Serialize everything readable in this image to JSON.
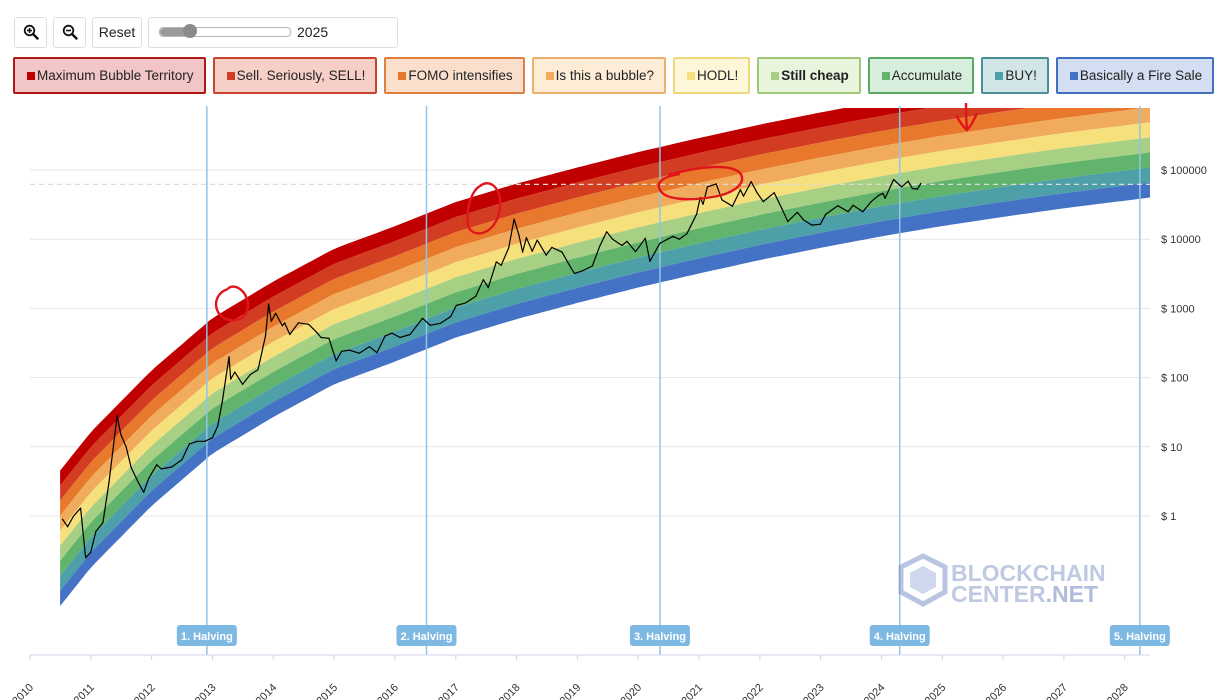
{
  "toolbar": {
    "zoom_in_icon": "zoom-in-icon",
    "zoom_out_icon": "zoom-out-icon",
    "reset_label": "Reset",
    "year_slider": {
      "min": 2010,
      "max": 2028,
      "value": 2025,
      "label": "2025"
    }
  },
  "legend": [
    {
      "label": "Maximum Bubble Territory",
      "color": "#c00000",
      "bg": "#f2c6c6",
      "border": "#b01818",
      "bold": false
    },
    {
      "label": "Sell. Seriously, SELL!",
      "color": "#d23d22",
      "bg": "#f6d0c6",
      "border": "#c8442e",
      "bold": false
    },
    {
      "label": "FOMO intensifies",
      "color": "#e8782c",
      "bg": "#fae0cc",
      "border": "#e0803c",
      "bold": false
    },
    {
      "label": "Is this a bubble?",
      "color": "#f0ac5c",
      "bg": "#fdecd6",
      "border": "#eeb06a",
      "bold": false
    },
    {
      "label": "HODL!",
      "color": "#f6e07c",
      "bg": "#fdf6d8",
      "border": "#ecd87a",
      "bold": false
    },
    {
      "label": "Still cheap",
      "color": "#a8d084",
      "bg": "#e8f4dc",
      "border": "#9cc878",
      "bold": true
    },
    {
      "label": "Accumulate",
      "color": "#62b46c",
      "bg": "#d8eedc",
      "border": "#5aa866",
      "bold": false
    },
    {
      "label": "BUY!",
      "color": "#4ea0a8",
      "bg": "#d2e6e8",
      "border": "#4a8e98",
      "bold": false
    },
    {
      "label": "Basically a Fire Sale",
      "color": "#4472c4",
      "bg": "#d4def2",
      "border": "#4270c0",
      "bold": false
    }
  ],
  "watermark": {
    "line1": "BLOCKCHAIN",
    "line2": "CENTER",
    "line2_suffix": ".NET"
  },
  "chart_data": {
    "type": "line",
    "title": "",
    "x_axis": {
      "type": "date",
      "ticks": [
        "2010",
        "2011",
        "2012",
        "2013",
        "2014",
        "2015",
        "2016",
        "2017",
        "2018",
        "2019",
        "2020",
        "2021",
        "2022",
        "2023",
        "2024",
        "2025",
        "2026",
        "2027",
        "2028"
      ],
      "range": [
        "2010-01-01",
        "2028-06-01"
      ]
    },
    "y_axis": {
      "scale": "log",
      "tick_labels": [
        "$ 1",
        "$ 10",
        "$ 100",
        "$ 1000",
        "$ 10000",
        "$ 100000"
      ],
      "range": [
        0.035,
        800000
      ]
    },
    "halvings": [
      {
        "label": "1. Halving",
        "date": "2012-11-28"
      },
      {
        "label": "2. Halving",
        "date": "2016-07-09"
      },
      {
        "label": "3. Halving",
        "date": "2020-05-11"
      },
      {
        "label": "4. Halving",
        "date": "2024-04-20"
      },
      {
        "label": "5. Halving",
        "date": "2028-04-01"
      }
    ],
    "reference_line": {
      "value": 62000,
      "style": "dashed"
    },
    "rainbow_bands": {
      "lower_edge": [
        [
          "2010-07-01",
          0.05
        ],
        [
          "2011-01-01",
          0.18
        ],
        [
          "2012-01-01",
          1.4
        ],
        [
          "2013-01-01",
          8
        ],
        [
          "2014-01-01",
          27
        ],
        [
          "2015-01-01",
          80
        ],
        [
          "2016-01-01",
          170
        ],
        [
          "2017-01-01",
          380
        ],
        [
          "2018-01-01",
          700
        ],
        [
          "2019-01-01",
          1200
        ],
        [
          "2020-01-01",
          2000
        ],
        [
          "2021-01-01",
          3200
        ],
        [
          "2022-01-01",
          5000
        ],
        [
          "2023-01-01",
          7500
        ],
        [
          "2024-01-01",
          11000
        ],
        [
          "2025-01-01",
          15500
        ],
        [
          "2026-01-01",
          21000
        ],
        [
          "2027-01-01",
          28000
        ],
        [
          "2028-01-01",
          36000
        ],
        [
          "2028-06-01",
          40000
        ]
      ],
      "band_ratio": 1.65,
      "band_count": 9
    },
    "series": [
      {
        "type": "price",
        "color": "#000000",
        "points": [
          [
            "2010-07-15",
            0.9
          ],
          [
            "2010-08-15",
            0.7
          ],
          [
            "2010-09-20",
            1.0
          ],
          [
            "2010-11-01",
            1.3
          ],
          [
            "2010-12-01",
            0.25
          ],
          [
            "2011-01-01",
            0.3
          ],
          [
            "2011-02-01",
            0.6
          ],
          [
            "2011-03-15",
            0.8
          ],
          [
            "2011-04-20",
            3
          ],
          [
            "2011-06-08",
            28
          ],
          [
            "2011-07-01",
            15
          ],
          [
            "2011-08-01",
            10
          ],
          [
            "2011-09-01",
            5
          ],
          [
            "2011-10-15",
            3
          ],
          [
            "2011-11-15",
            2.2
          ],
          [
            "2011-12-15",
            3.5
          ],
          [
            "2012-02-01",
            5.5
          ],
          [
            "2012-03-01",
            4.8
          ],
          [
            "2012-05-01",
            5.1
          ],
          [
            "2012-07-01",
            6.5
          ],
          [
            "2012-08-15",
            11
          ],
          [
            "2012-10-01",
            12
          ],
          [
            "2012-11-15",
            12
          ],
          [
            "2013-01-01",
            13.5
          ],
          [
            "2013-02-01",
            20
          ],
          [
            "2013-03-01",
            45
          ],
          [
            "2013-04-10",
            200
          ],
          [
            "2013-04-20",
            95
          ],
          [
            "2013-05-15",
            120
          ],
          [
            "2013-07-01",
            80
          ],
          [
            "2013-08-15",
            110
          ],
          [
            "2013-10-01",
            130
          ],
          [
            "2013-11-15",
            400
          ],
          [
            "2013-12-04",
            1150
          ],
          [
            "2013-12-20",
            650
          ],
          [
            "2014-01-15",
            850
          ],
          [
            "2014-02-25",
            560
          ],
          [
            "2014-03-10",
            620
          ],
          [
            "2014-04-10",
            420
          ],
          [
            "2014-06-01",
            620
          ],
          [
            "2014-08-01",
            590
          ],
          [
            "2014-09-15",
            460
          ],
          [
            "2014-10-15",
            380
          ],
          [
            "2014-12-01",
            370
          ],
          [
            "2015-01-14",
            175
          ],
          [
            "2015-02-15",
            240
          ],
          [
            "2015-04-01",
            250
          ],
          [
            "2015-06-01",
            225
          ],
          [
            "2015-08-01",
            280
          ],
          [
            "2015-09-15",
            230
          ],
          [
            "2015-11-04",
            400
          ],
          [
            "2015-12-15",
            440
          ],
          [
            "2016-02-01",
            380
          ],
          [
            "2016-04-01",
            420
          ],
          [
            "2016-06-16",
            720
          ],
          [
            "2016-08-01",
            570
          ],
          [
            "2016-10-01",
            610
          ],
          [
            "2016-12-01",
            760
          ],
          [
            "2017-01-04",
            1100
          ],
          [
            "2017-03-01",
            1200
          ],
          [
            "2017-05-01",
            1500
          ],
          [
            "2017-06-15",
            2600
          ],
          [
            "2017-07-15",
            2000
          ],
          [
            "2017-09-01",
            4700
          ],
          [
            "2017-10-01",
            4200
          ],
          [
            "2017-11-15",
            7500
          ],
          [
            "2017-12-17",
            19500
          ],
          [
            "2018-01-15",
            11500
          ],
          [
            "2018-02-06",
            6500
          ],
          [
            "2018-03-01",
            10500
          ],
          [
            "2018-04-05",
            6700
          ],
          [
            "2018-05-05",
            9700
          ],
          [
            "2018-06-28",
            5900
          ],
          [
            "2018-08-01",
            7600
          ],
          [
            "2018-10-01",
            6500
          ],
          [
            "2018-11-25",
            3800
          ],
          [
            "2018-12-15",
            3200
          ],
          [
            "2019-02-01",
            3500
          ],
          [
            "2019-04-01",
            4100
          ],
          [
            "2019-05-15",
            7900
          ],
          [
            "2019-06-26",
            12800
          ],
          [
            "2019-08-01",
            10000
          ],
          [
            "2019-09-26",
            8100
          ],
          [
            "2019-10-26",
            9300
          ],
          [
            "2019-12-17",
            6600
          ],
          [
            "2020-02-13",
            10300
          ],
          [
            "2020-03-12",
            4800
          ],
          [
            "2020-05-10",
            8700
          ],
          [
            "2020-07-28",
            11000
          ],
          [
            "2020-09-05",
            10000
          ],
          [
            "2020-10-20",
            12000
          ],
          [
            "2020-12-17",
            23000
          ],
          [
            "2021-01-08",
            40000
          ],
          [
            "2021-01-25",
            32000
          ],
          [
            "2021-02-20",
            57000
          ],
          [
            "2021-04-14",
            63000
          ],
          [
            "2021-05-19",
            37000
          ],
          [
            "2021-07-20",
            30000
          ],
          [
            "2021-09-06",
            52000
          ],
          [
            "2021-09-25",
            42000
          ],
          [
            "2021-11-10",
            68000
          ],
          [
            "2021-12-15",
            47000
          ],
          [
            "2022-01-22",
            35000
          ],
          [
            "2022-03-28",
            47000
          ],
          [
            "2022-05-12",
            28000
          ],
          [
            "2022-06-18",
            18000
          ],
          [
            "2022-08-14",
            24500
          ],
          [
            "2022-09-20",
            19000
          ],
          [
            "2022-11-09",
            16000
          ],
          [
            "2022-12-30",
            16500
          ],
          [
            "2023-02-01",
            23000
          ],
          [
            "2023-04-14",
            30500
          ],
          [
            "2023-06-15",
            25000
          ],
          [
            "2023-07-15",
            31000
          ],
          [
            "2023-09-11",
            25000
          ],
          [
            "2023-11-01",
            35000
          ],
          [
            "2023-12-15",
            43000
          ],
          [
            "2024-01-10",
            46000
          ],
          [
            "2024-01-23",
            39000
          ],
          [
            "2024-03-14",
            73000
          ],
          [
            "2024-05-01",
            57000
          ],
          [
            "2024-06-10",
            69000
          ],
          [
            "2024-07-05",
            54000
          ],
          [
            "2024-08-05",
            53000
          ],
          [
            "2024-08-25",
            64000
          ]
        ]
      }
    ]
  }
}
